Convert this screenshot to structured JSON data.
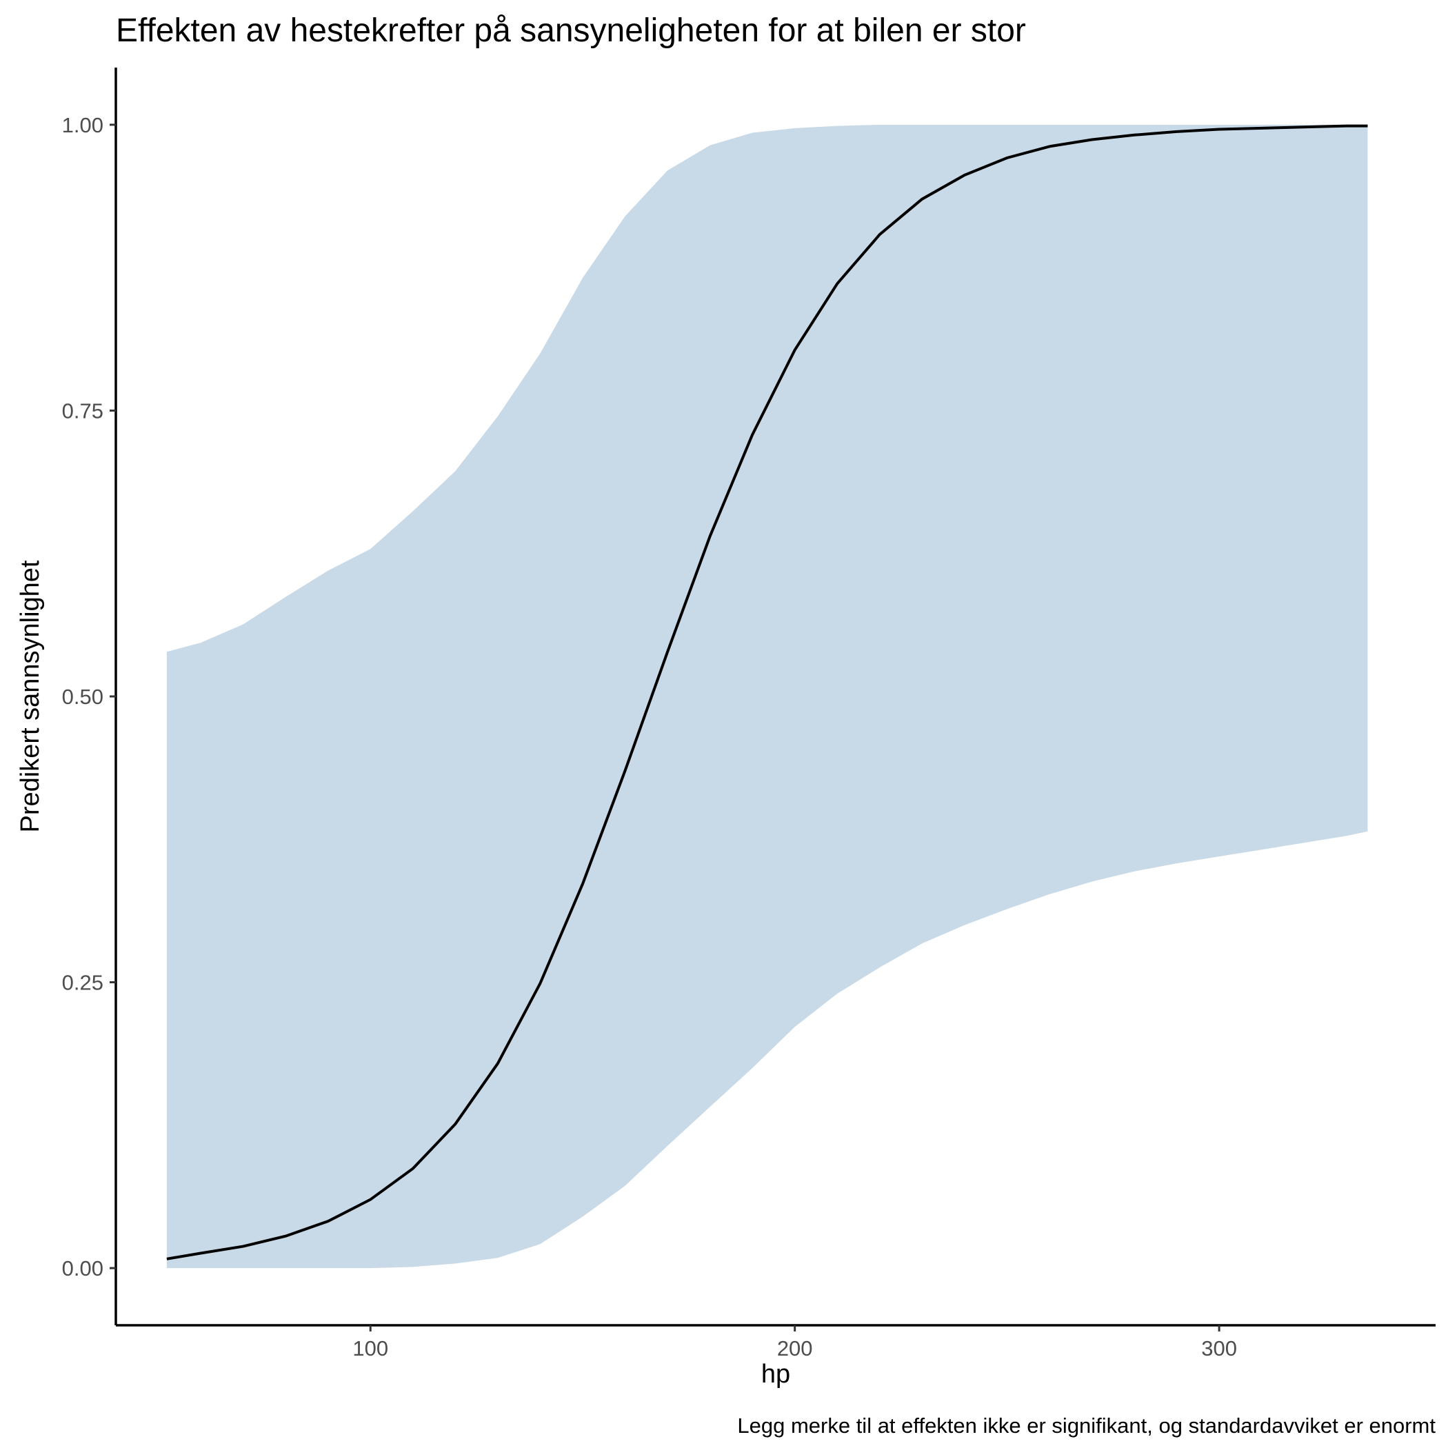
{
  "chart_data": {
    "type": "line",
    "title": "Effekten av hestekrefter på sansyneligheten for at bilen er stor",
    "xlabel": "hp",
    "ylabel": "Predikert sannsynlighet",
    "caption": "Legg merke til at effekten ikke er signifikant, og standardavviket er enormt",
    "xlim": [
      40,
      351
    ],
    "ylim": [
      -0.05,
      1.05
    ],
    "x_ticks": [
      100,
      200,
      300
    ],
    "x_tick_labels": [
      "100",
      "200",
      "300"
    ],
    "y_ticks": [
      0,
      0.25,
      0.5,
      0.75,
      1
    ],
    "y_tick_labels": [
      "0.00",
      "0.25",
      "0.50",
      "0.75",
      "1.00"
    ],
    "grid": false,
    "legend": "none",
    "colors": {
      "ribbon": "#c8d9e8",
      "line": "#000000"
    },
    "series": [
      {
        "kind": "ribbon",
        "x": [
          52,
          60,
          70,
          80,
          90,
          100,
          110,
          120,
          130,
          140,
          150,
          160,
          170,
          180,
          190,
          200,
          210,
          220,
          230,
          240,
          250,
          260,
          270,
          280,
          290,
          300,
          310,
          320,
          330,
          335
        ],
        "lower": [
          0.0,
          0.0,
          0.0,
          0.0,
          0.0,
          0.0,
          0.001,
          0.004,
          0.009,
          0.021,
          0.045,
          0.072,
          0.107,
          0.141,
          0.175,
          0.211,
          0.24,
          0.263,
          0.284,
          0.3,
          0.314,
          0.327,
          0.338,
          0.347,
          0.354,
          0.36,
          0.366,
          0.372,
          0.378,
          0.382
        ],
        "upper": [
          0.539,
          0.547,
          0.563,
          0.587,
          0.61,
          0.629,
          0.662,
          0.697,
          0.745,
          0.8,
          0.866,
          0.92,
          0.96,
          0.982,
          0.993,
          0.997,
          0.999,
          1.0,
          1.0,
          1.0,
          1.0,
          1.0,
          1.0,
          1.0,
          1.0,
          1.0,
          1.0,
          1.0,
          1.0,
          1.0
        ]
      },
      {
        "kind": "line",
        "x": [
          52,
          60,
          70,
          80,
          90,
          100,
          110,
          120,
          130,
          140,
          150,
          160,
          170,
          180,
          190,
          200,
          210,
          220,
          230,
          240,
          250,
          260,
          270,
          280,
          290,
          300,
          310,
          320,
          330,
          335
        ],
        "values": [
          0.008,
          0.013,
          0.019,
          0.028,
          0.041,
          0.06,
          0.087,
          0.126,
          0.179,
          0.249,
          0.336,
          0.435,
          0.539,
          0.64,
          0.729,
          0.803,
          0.861,
          0.904,
          0.935,
          0.956,
          0.971,
          0.981,
          0.987,
          0.991,
          0.994,
          0.996,
          0.997,
          0.998,
          0.999,
          0.999
        ]
      }
    ]
  }
}
